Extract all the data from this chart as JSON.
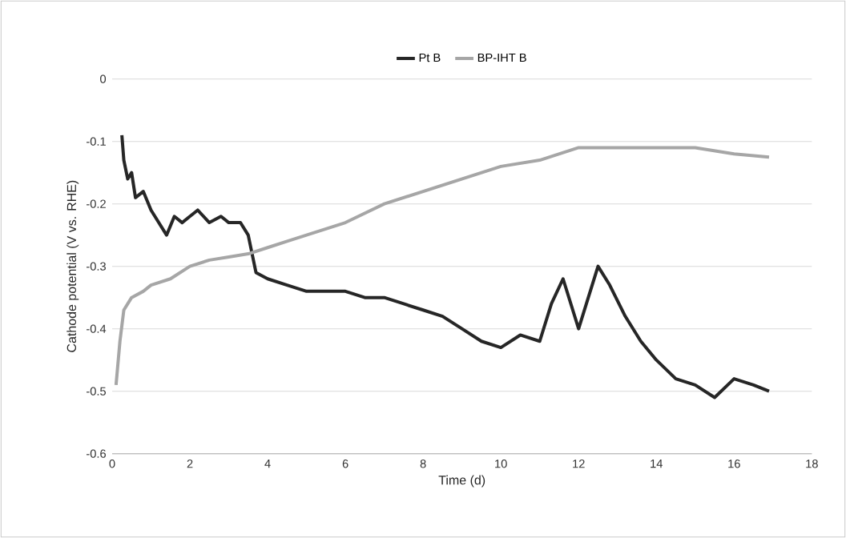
{
  "chart_data": {
    "type": "line",
    "xlabel": "Time (d)",
    "ylabel": "Cathode potential (V vs. RHE)",
    "xlim": [
      0,
      18
    ],
    "xticks": [
      0,
      2,
      4,
      6,
      8,
      10,
      12,
      14,
      16,
      18
    ],
    "ylim": [
      -0.6,
      0
    ],
    "yticks": [
      -0.6,
      -0.5,
      -0.4,
      -0.3,
      -0.2,
      -0.1,
      0
    ],
    "grid": "y",
    "legend": "top",
    "marker": "none",
    "line_style": "solid",
    "series": [
      {
        "name": "Pt B",
        "color": "#262626",
        "x": [
          0.25,
          0.3,
          0.4,
          0.5,
          0.6,
          0.8,
          1.0,
          1.2,
          1.4,
          1.6,
          1.8,
          2.0,
          2.2,
          2.5,
          2.8,
          3.0,
          3.3,
          3.5,
          3.6,
          3.7,
          4.0,
          4.5,
          5.0,
          5.5,
          6.0,
          6.5,
          7.0,
          7.5,
          8.0,
          8.5,
          9.0,
          9.5,
          10.0,
          10.5,
          11.0,
          11.3,
          11.6,
          11.8,
          12.0,
          12.2,
          12.5,
          12.8,
          13.2,
          13.6,
          14.0,
          14.5,
          15.0,
          15.5,
          16.0,
          16.5,
          16.9
        ],
        "values": [
          -0.09,
          -0.13,
          -0.16,
          -0.15,
          -0.19,
          -0.18,
          -0.21,
          -0.23,
          -0.25,
          -0.22,
          -0.23,
          -0.22,
          -0.21,
          -0.23,
          -0.22,
          -0.23,
          -0.23,
          -0.25,
          -0.28,
          -0.31,
          -0.32,
          -0.33,
          -0.34,
          -0.34,
          -0.34,
          -0.35,
          -0.35,
          -0.36,
          -0.37,
          -0.38,
          -0.4,
          -0.42,
          -0.43,
          -0.41,
          -0.42,
          -0.36,
          -0.32,
          -0.36,
          -0.4,
          -0.36,
          -0.3,
          -0.33,
          -0.38,
          -0.42,
          -0.45,
          -0.48,
          -0.49,
          -0.51,
          -0.48,
          -0.49,
          -0.5
        ]
      },
      {
        "name": "BP-IHT B",
        "color": "#a6a6a6",
        "x": [
          0.1,
          0.2,
          0.3,
          0.5,
          0.8,
          1.0,
          1.5,
          2.0,
          2.5,
          3.0,
          3.5,
          4.0,
          4.5,
          5.0,
          6.0,
          7.0,
          8.0,
          9.0,
          10.0,
          11.0,
          12.0,
          13.0,
          14.0,
          15.0,
          16.0,
          16.9
        ],
        "values": [
          -0.49,
          -0.42,
          -0.37,
          -0.35,
          -0.34,
          -0.33,
          -0.32,
          -0.3,
          -0.29,
          -0.285,
          -0.28,
          -0.27,
          -0.26,
          -0.25,
          -0.23,
          -0.2,
          -0.18,
          -0.16,
          -0.14,
          -0.13,
          -0.11,
          -0.11,
          -0.11,
          -0.11,
          -0.12,
          -0.125
        ]
      }
    ]
  }
}
